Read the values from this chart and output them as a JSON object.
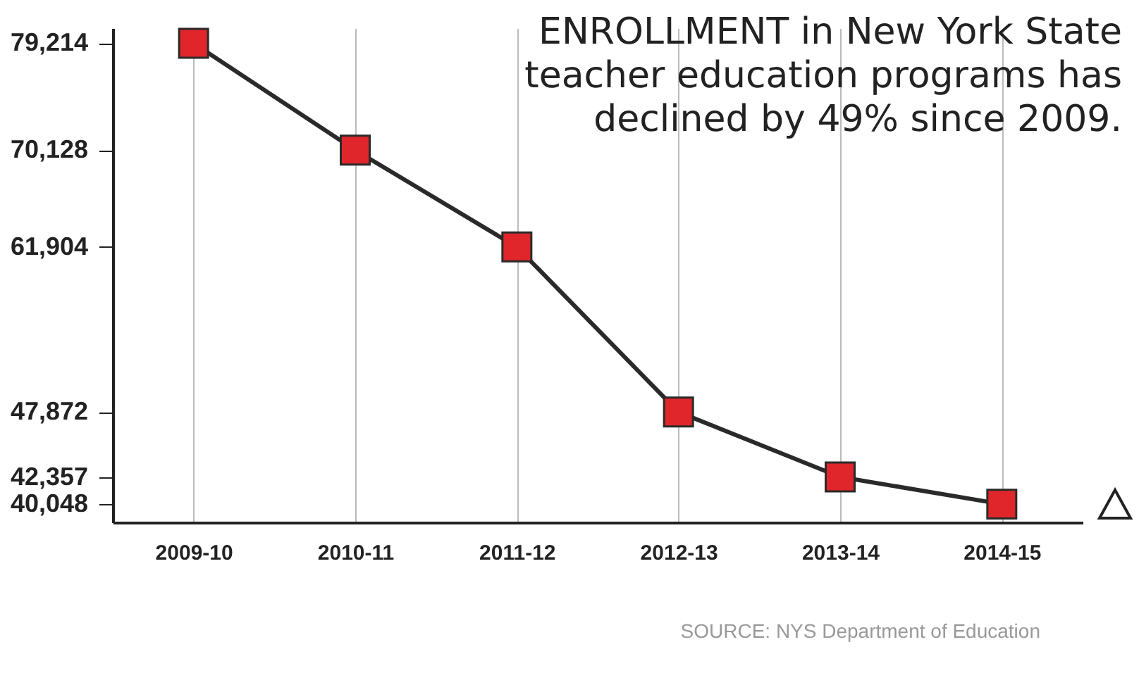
{
  "chart_data": {
    "type": "line",
    "title": "ENROLLMENT in New York State teacher education programs has declined by 49% since 2009.",
    "categories": [
      "2009-10",
      "2010-11",
      "2011-12",
      "2012-13",
      "2013-14",
      "2014-15"
    ],
    "series": [
      {
        "color": "#e0262b",
        "values": [
          79214,
          70128,
          61904,
          47872,
          42357,
          40048
        ]
      }
    ],
    "ylim": [
      38500,
      80500
    ],
    "yticks": [
      {
        "value": 40048,
        "label": "40,048"
      },
      {
        "value": 42357,
        "label": "42,357"
      },
      {
        "value": 47872,
        "label": "47,872"
      },
      {
        "value": 61904,
        "label": "61,904"
      },
      {
        "value": 70128,
        "label": "70,128"
      },
      {
        "value": 79214,
        "label": "79,214"
      }
    ],
    "grid": "x",
    "marker": "square",
    "data_labels": false,
    "annotations": [
      "SOURCE: NYS Department of Education"
    ]
  }
}
